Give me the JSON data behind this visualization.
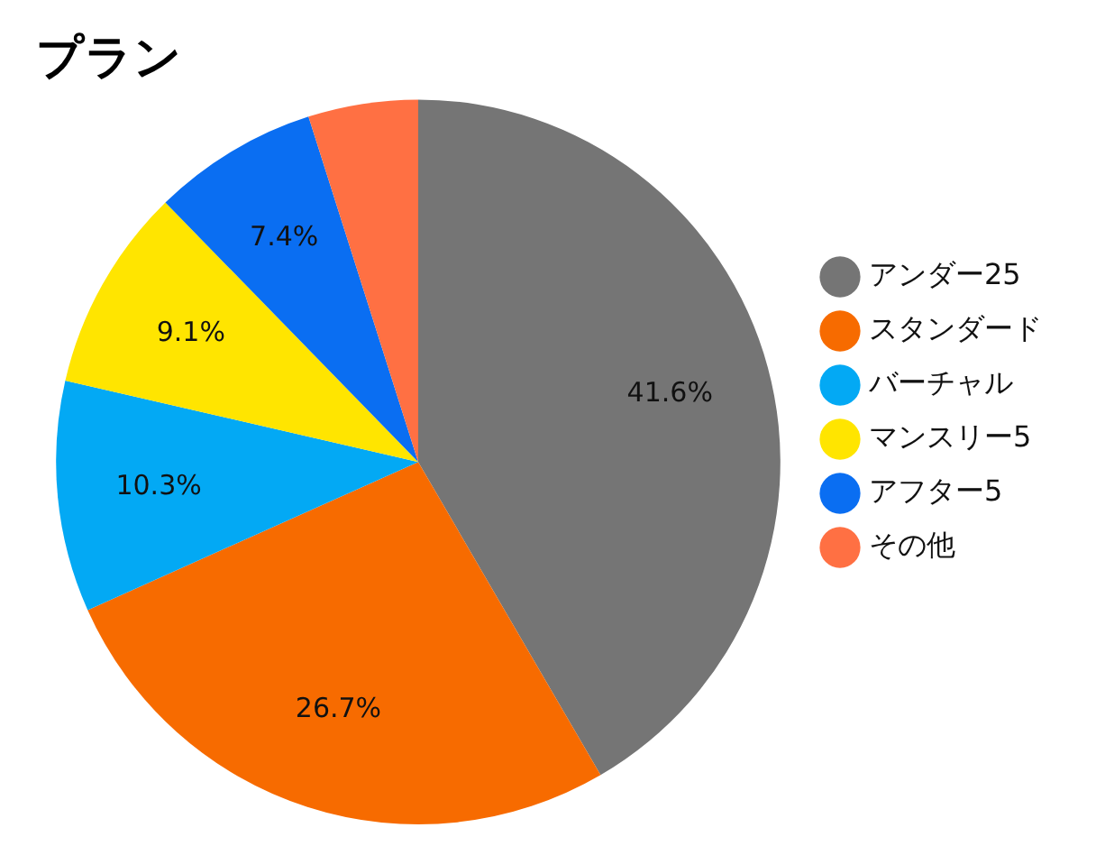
{
  "chart_data": {
    "type": "pie",
    "title": "プラン",
    "categories": [
      "アンダー25",
      "スタンダード",
      "バーチャル",
      "マンスリー5",
      "アフター5",
      "その他"
    ],
    "values": [
      41.6,
      26.7,
      10.3,
      9.1,
      7.4,
      4.9
    ],
    "value_labels": [
      "41.6%",
      "26.7%",
      "10.3%",
      "9.1%",
      "7.4%",
      null
    ],
    "colors": [
      "#757575",
      "#f76b00",
      "#03a9f4",
      "#ffe500",
      "#0a6ef2",
      "#ff7043"
    ],
    "legend": "right"
  }
}
